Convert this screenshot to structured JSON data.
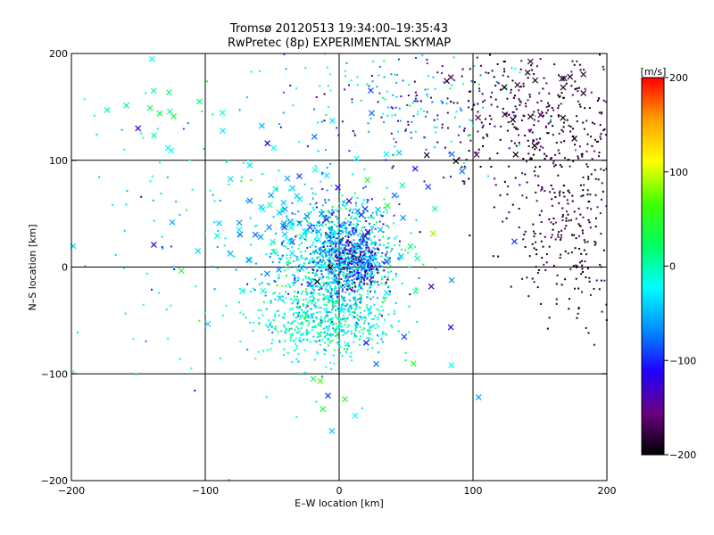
{
  "chart_data": {
    "type": "scatter",
    "title": "Tromsø 20120513 19:34:00–19:35:43",
    "subtitle": "RwPretec (8p) EXPERIMENTAL SKYMAP",
    "xlabel": "E–W location [km]",
    "ylabel": "N–S location [km]",
    "xlim": [
      -200,
      200
    ],
    "ylim": [
      -200,
      200
    ],
    "xticks": [
      -200,
      -100,
      0,
      100,
      200
    ],
    "yticks": [
      -200,
      -100,
      0,
      100,
      200
    ],
    "x_tick_labels": [
      "−200",
      "−100",
      "0",
      "100",
      "200"
    ],
    "y_tick_labels": [
      "−200",
      "−100",
      "0",
      "100",
      "200"
    ],
    "grid": true,
    "colorbar": {
      "title": "[m/s]",
      "range": [
        -200,
        200
      ],
      "ticks": [
        200,
        100,
        0,
        -100,
        -200
      ],
      "tick_labels": [
        "200",
        "100",
        "0",
        "−100",
        "−200"
      ],
      "colormap": [
        "#000000",
        "#6a0080",
        "#2000ff",
        "#0090ff",
        "#00ffff",
        "#00ff60",
        "#40ff00",
        "#ffff00",
        "#ffa000",
        "#ff0000"
      ]
    },
    "series": [
      {
        "marker": "dot",
        "clusters": [
          {
            "center": [
              0,
              10
            ],
            "spread": [
              22,
              28
            ],
            "count": 1100,
            "velocity_mean": -40,
            "velocity_sd": 45
          },
          {
            "center": [
              -10,
              -50
            ],
            "spread": [
              25,
              18
            ],
            "count": 550,
            "velocity_mean": -10,
            "velocity_sd": 25
          },
          {
            "center": [
              12,
              5
            ],
            "spread": [
              10,
              14
            ],
            "count": 300,
            "velocity_mean": -110,
            "velocity_sd": 45
          },
          {
            "center": [
              150,
              140
            ],
            "spread": [
              40,
              40
            ],
            "count": 400,
            "velocity_mean": -180,
            "velocity_sd": 20
          },
          {
            "center": [
              175,
              40
            ],
            "spread": [
              22,
              45
            ],
            "count": 280,
            "velocity_mean": -185,
            "velocity_sd": 15
          },
          {
            "center": [
              40,
              150
            ],
            "spread": [
              45,
              30
            ],
            "count": 200,
            "velocity_mean": -60,
            "velocity_sd": 50
          },
          {
            "center": [
              -100,
              30
            ],
            "spread": [
              60,
              90
            ],
            "count": 140,
            "velocity_mean": -20,
            "velocity_sd": 40
          }
        ]
      },
      {
        "marker": "cross",
        "clusters": [
          {
            "center": [
              -130,
              150
            ],
            "spread": [
              20,
              25
            ],
            "count": 14,
            "velocity_mean": 10,
            "velocity_sd": 15
          },
          {
            "center": [
              140,
              160
            ],
            "spread": [
              40,
              35
            ],
            "count": 30,
            "velocity_mean": -185,
            "velocity_sd": 15
          },
          {
            "center": [
              -30,
              40
            ],
            "spread": [
              35,
              30
            ],
            "count": 70,
            "velocity_mean": -50,
            "velocity_sd": 30
          },
          {
            "center": [
              30,
              60
            ],
            "spread": [
              35,
              40
            ],
            "count": 25,
            "velocity_mean": -80,
            "velocity_sd": 70
          },
          {
            "center": [
              40,
              -80
            ],
            "spread": [
              50,
              60
            ],
            "count": 20,
            "velocity_mean": -20,
            "velocity_sd": 50
          },
          {
            "center": [
              -60,
              30
            ],
            "spread": [
              70,
              80
            ],
            "count": 25,
            "velocity_mean": -40,
            "velocity_sd": 50
          }
        ]
      }
    ]
  }
}
